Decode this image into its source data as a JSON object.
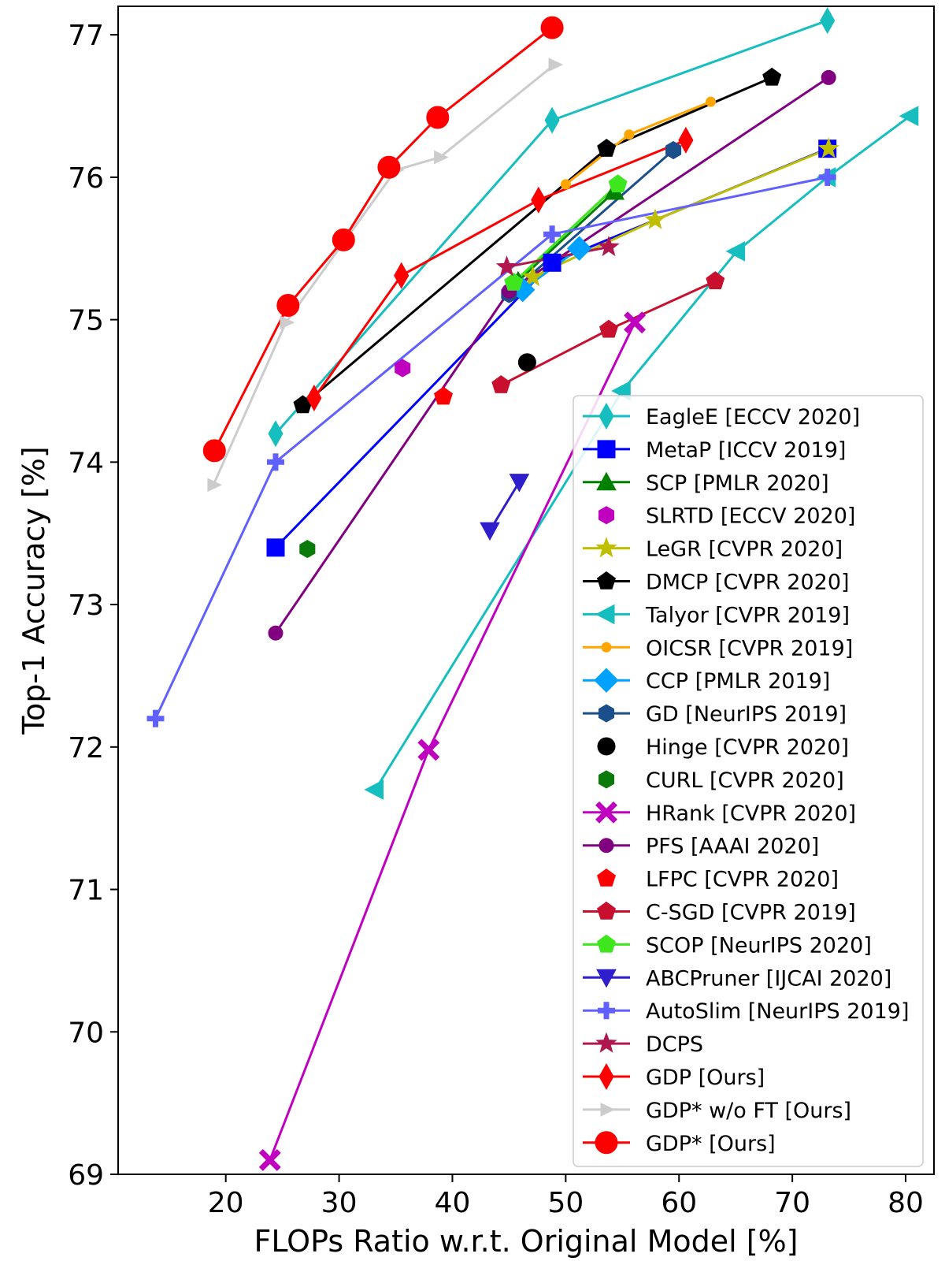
{
  "chart_data": {
    "type": "line",
    "title": "",
    "xlabel": "FLOPs Ratio w.r.t. Original Model [%]",
    "ylabel": "Top-1 Accuracy [%]",
    "xlim": [
      10.5,
      82.5
    ],
    "ylim": [
      69,
      77.2
    ],
    "xticks": [
      20,
      30,
      40,
      50,
      60,
      70,
      80
    ],
    "yticks": [
      69,
      70,
      71,
      72,
      73,
      74,
      75,
      76,
      77
    ],
    "grid": false,
    "legend_position": "bottom-right",
    "series": [
      {
        "name": "EagleE [ECCV 2020]",
        "color": "#17bebf",
        "marker": "thin_diamond",
        "line": true,
        "x": [
          24.4,
          48.8,
          73.1
        ],
        "y": [
          74.2,
          76.4,
          77.1
        ]
      },
      {
        "name": "MetaP [ICCV 2019]",
        "color": "#0000ff",
        "marker": "square",
        "line": true,
        "x": [
          24.4,
          48.8,
          73.1
        ],
        "y": [
          73.4,
          75.4,
          76.2
        ]
      },
      {
        "name": "SCP [PMLR 2020]",
        "color": "#008000",
        "marker": "triangle_up",
        "line": true,
        "x": [
          45.8,
          54.3
        ],
        "y": [
          75.27,
          75.9
        ]
      },
      {
        "name": "SLRTD [ECCV 2020]",
        "color": "#bf00bf",
        "marker": "hexagon",
        "line": false,
        "x": [
          35.6
        ],
        "y": [
          74.66
        ]
      },
      {
        "name": "LeGR [CVPR 2020]",
        "color": "#bfbf00",
        "marker": "star",
        "line": true,
        "x": [
          47.1,
          57.9,
          73.2
        ],
        "y": [
          75.3,
          75.7,
          76.2
        ]
      },
      {
        "name": "DMCP [CVPR 2020]",
        "color": "#000000",
        "marker": "pentagon",
        "line": true,
        "x": [
          26.8,
          53.6,
          68.2
        ],
        "y": [
          74.4,
          76.2,
          76.7
        ]
      },
      {
        "name": "Talyor [CVPR 2019]",
        "color": "#17bebf",
        "marker": "triangle_left",
        "line": true,
        "x": [
          33.2,
          55.0,
          65.1,
          73.1,
          80.4
        ],
        "y": [
          71.7,
          74.5,
          75.48,
          76.0,
          76.43
        ]
      },
      {
        "name": "OICSR [CVPR 2019]",
        "color": "#ffa500",
        "marker": "circle_small",
        "line": true,
        "x": [
          50.0,
          55.6,
          62.8
        ],
        "y": [
          75.95,
          76.3,
          76.53
        ]
      },
      {
        "name": "CCP [PMLR 2019]",
        "color": "#00a2ff",
        "marker": "diamond",
        "line": true,
        "x": [
          46.2,
          51.2
        ],
        "y": [
          75.21,
          75.5
        ]
      },
      {
        "name": "GD [NeurIPS 2019]",
        "color": "#1a4f8b",
        "marker": "hexagon",
        "line": true,
        "x": [
          45.0,
          59.5
        ],
        "y": [
          75.18,
          76.19
        ]
      },
      {
        "name": "Hinge [CVPR 2020]",
        "color": "#000000",
        "marker": "circle",
        "line": false,
        "x": [
          46.6
        ],
        "y": [
          74.7
        ]
      },
      {
        "name": "CURL [CVPR 2020]",
        "color": "#0a7a0a",
        "marker": "hexagon",
        "line": false,
        "x": [
          27.2
        ],
        "y": [
          73.39
        ]
      },
      {
        "name": "HRank [CVPR 2020]",
        "color": "#bf00bf",
        "marker": "x_filled",
        "line": true,
        "x": [
          23.9,
          37.9,
          56.1
        ],
        "y": [
          69.1,
          71.98,
          74.98
        ]
      },
      {
        "name": "PFS [AAAI 2020]",
        "color": "#800080",
        "marker": "circle_mid",
        "line": true,
        "x": [
          24.4,
          45.0,
          73.2
        ],
        "y": [
          72.8,
          75.2,
          76.7
        ]
      },
      {
        "name": "LFPC [CVPR 2020]",
        "color": "#ff0000",
        "marker": "pentagon",
        "line": false,
        "x": [
          39.2
        ],
        "y": [
          74.46
        ]
      },
      {
        "name": "C-SGD [CVPR 2019]",
        "color": "#c8102e",
        "marker": "pentagon",
        "line": true,
        "x": [
          44.3,
          53.8,
          63.2
        ],
        "y": [
          74.54,
          74.93,
          75.27
        ]
      },
      {
        "name": "SCOP [NeurIPS 2020]",
        "color": "#3ee61e",
        "marker": "pentagon",
        "line": true,
        "x": [
          45.4,
          54.6
        ],
        "y": [
          75.26,
          75.95
        ]
      },
      {
        "name": "ABCPruner [IJCAI 2020]",
        "color": "#2e1ecc",
        "marker": "triangle_down",
        "line": true,
        "x": [
          43.3,
          45.9
        ],
        "y": [
          73.52,
          73.86
        ]
      },
      {
        "name": "AutoSlim [NeurIPS 2019]",
        "color": "#6060ff",
        "marker": "plus_filled",
        "line": true,
        "x": [
          13.8,
          24.4,
          48.8,
          73.1
        ],
        "y": [
          72.2,
          74.0,
          75.6,
          76.0
        ]
      },
      {
        "name": "DCPS",
        "color": "#b0174f",
        "marker": "star",
        "line": true,
        "x": [
          44.8,
          53.8
        ],
        "y": [
          75.37,
          75.51
        ]
      },
      {
        "name": "GDP [Ours]",
        "color": "#ff0000",
        "marker": "thin_diamond",
        "line": true,
        "x": [
          27.8,
          35.5,
          47.6,
          60.6
        ],
        "y": [
          74.45,
          75.31,
          75.84,
          76.26
        ]
      },
      {
        "name": "GDP* w/o FT [Ours]",
        "color": "#cccccc",
        "marker": "triangle_right",
        "line": true,
        "x": [
          18.9,
          25.3,
          35.0,
          38.9,
          49.0
        ],
        "y": [
          73.84,
          74.98,
          76.05,
          76.14,
          76.79
        ]
      },
      {
        "name": "GDP* [Ours]",
        "color": "#ff0000",
        "marker": "circle_big",
        "line": true,
        "x": [
          19.0,
          25.5,
          30.4,
          34.4,
          38.7,
          48.8
        ],
        "y": [
          74.08,
          75.1,
          75.56,
          76.07,
          76.42,
          77.05
        ]
      }
    ]
  }
}
